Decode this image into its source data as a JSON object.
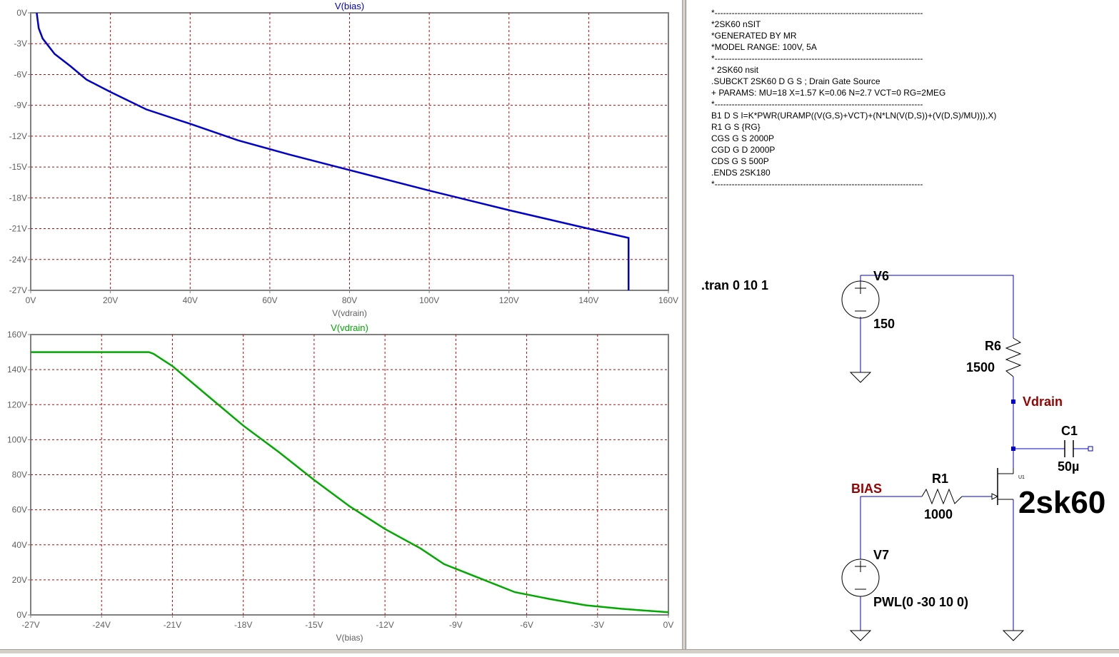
{
  "plots": [
    {
      "title": "V(bias)",
      "xlabel": "V(vdrain)",
      "color": "#0000cc",
      "x_ticks": [
        "0V",
        "20V",
        "40V",
        "60V",
        "80V",
        "100V",
        "120V",
        "140V",
        "160V"
      ],
      "y_ticks": [
        "0V",
        "-3V",
        "-6V",
        "-9V",
        "-12V",
        "-15V",
        "-18V",
        "-21V",
        "-24V",
        "-27V"
      ]
    },
    {
      "title": "V(vdrain)",
      "xlabel": "V(bias)",
      "color": "#00aa00",
      "x_ticks": [
        "-27V",
        "-24V",
        "-21V",
        "-18V",
        "-15V",
        "-12V",
        "-9V",
        "-6V",
        "-3V",
        "0V"
      ],
      "y_ticks": [
        "0V",
        "20V",
        "40V",
        "60V",
        "80V",
        "100V",
        "120V",
        "140V",
        "160V"
      ]
    }
  ],
  "chart_data": [
    {
      "type": "line",
      "title": "V(bias)",
      "xlabel": "V(vdrain)",
      "ylabel": "",
      "xlim": [
        0,
        160
      ],
      "ylim": [
        -27,
        0
      ],
      "grid": true,
      "series": [
        {
          "name": "V(bias)",
          "color": "#0000cc",
          "x": [
            1.5,
            2,
            3,
            4,
            6,
            10,
            14,
            20,
            29,
            40,
            52,
            65,
            80,
            100,
            120,
            140,
            150,
            150
          ],
          "y": [
            0,
            -1.5,
            -2.5,
            -3,
            -4,
            -5.2,
            -6.5,
            -7.7,
            -9.4,
            -10.8,
            -12.4,
            -13.8,
            -15.3,
            -17.3,
            -19.2,
            -21,
            -21.9,
            -27
          ]
        }
      ]
    },
    {
      "type": "line",
      "title": "V(vdrain)",
      "xlabel": "V(bias)",
      "ylabel": "",
      "xlim": [
        -27,
        0
      ],
      "ylim": [
        0,
        160
      ],
      "grid": true,
      "series": [
        {
          "name": "V(vdrain)",
          "color": "#00aa00",
          "x": [
            -27,
            -22,
            -21.8,
            -21,
            -19.5,
            -18,
            -16.5,
            -15,
            -13.5,
            -12,
            -10.5,
            -9.5,
            -8,
            -6.5,
            -5,
            -3.5,
            -2,
            -1,
            0
          ],
          "y": [
            150,
            150,
            149,
            142,
            125,
            108,
            93,
            77,
            62,
            49,
            38,
            29,
            21,
            13,
            9,
            5.5,
            3.5,
            2.5,
            1.5
          ]
        }
      ]
    }
  ],
  "netlist": [
    "*-------------------------------------------------------------------------",
    "*2SK60 nSIT",
    "*GENERATED BY MR",
    "*MODEL RANGE: 100V, 5A",
    "*-------------------------------------------------------------------------",
    "* 2SK60 nsit",
    ".SUBCKT 2SK60 D G S ; Drain Gate Source",
    "+ PARAMS: MU=18 X=1.57 K=0.06 N=2.7 VCT=0 RG=2MEG",
    "*-------------------------------------------------------------------------",
    "B1 D S I=K*PWR(URAMP((V(G,S)+VCT)+(N*LN(V(D,S))+(V(D,S)/MU))),X)",
    "R1 G S {RG}",
    "CGS G S 2000P",
    "CGD G D 2000P",
    "CDS G S 500P",
    ".ENDS 2SK180",
    "*-------------------------------------------------------------------------"
  ],
  "schematic": {
    "directive": ".tran 0 10 1",
    "v6_name": "V6",
    "v6_value": "150",
    "r6_name": "R6",
    "r6_value": "1500",
    "vdrain_label": "Vdrain",
    "c1_name": "C1",
    "c1_value": "50µ",
    "u1_label": "U1",
    "jfet_model": "2sk60",
    "bias_label": "BIAS",
    "r1_name": "R1",
    "r1_value": "1000",
    "v7_name": "V7",
    "v7_value": "PWL(0 -30 10 0)",
    "net_label_color": "#990000",
    "wire_color": "#0000cc"
  }
}
